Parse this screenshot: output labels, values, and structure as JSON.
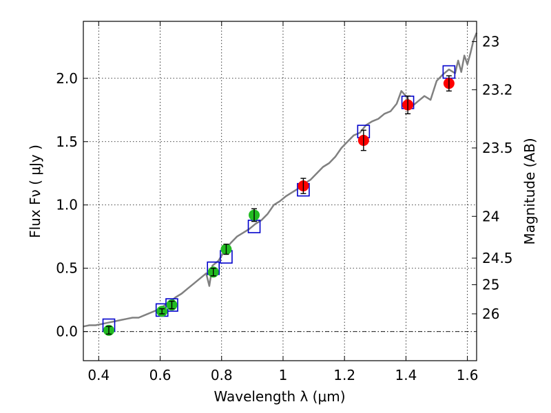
{
  "chart_data": {
    "type": "scatter",
    "xlabel": "Wavelength  λ (μm)",
    "ylabel": "Flux  Fν  ( μJy )",
    "y2label": "Magnitude (AB)",
    "xlim": [
      0.35,
      1.63
    ],
    "ylim": [
      -0.23,
      2.45
    ],
    "grid": true,
    "x_ticks": [
      0.4,
      0.6,
      0.8,
      1.0,
      1.2,
      1.4,
      1.6
    ],
    "x_tick_labels": [
      "0.4",
      "0.6",
      "0.8",
      "1",
      "1.2",
      "1.4",
      "1.6"
    ],
    "y_ticks": [
      0.0,
      0.5,
      1.0,
      1.5,
      2.0
    ],
    "y_tick_labels": [
      "0.0",
      "0.5",
      "1.0",
      "1.5",
      "2.0"
    ],
    "y2_ticks": [
      {
        "flux": 2.29,
        "label": "23"
      },
      {
        "flux": 1.91,
        "label": "23.2"
      },
      {
        "flux": 1.45,
        "label": "23.5"
      },
      {
        "flux": 0.91,
        "label": "24"
      },
      {
        "flux": 0.58,
        "label": "24.5"
      },
      {
        "flux": 0.37,
        "label": "25"
      },
      {
        "flux": 0.14,
        "label": "26"
      }
    ],
    "zero_line": 0.0,
    "colors": {
      "spectrum": "#808080",
      "model_box": "#0000cc",
      "green_point": "#22bb22",
      "red_point": "#ff0000",
      "error_bar": "#000000"
    },
    "spectrum": [
      [
        0.35,
        0.04
      ],
      [
        0.37,
        0.05
      ],
      [
        0.39,
        0.05
      ],
      [
        0.41,
        0.06
      ],
      [
        0.43,
        0.07
      ],
      [
        0.45,
        0.08
      ],
      [
        0.47,
        0.09
      ],
      [
        0.49,
        0.1
      ],
      [
        0.51,
        0.11
      ],
      [
        0.53,
        0.11
      ],
      [
        0.55,
        0.13
      ],
      [
        0.57,
        0.15
      ],
      [
        0.59,
        0.17
      ],
      [
        0.61,
        0.2
      ],
      [
        0.63,
        0.23
      ],
      [
        0.65,
        0.27
      ],
      [
        0.67,
        0.3
      ],
      [
        0.69,
        0.34
      ],
      [
        0.71,
        0.38
      ],
      [
        0.73,
        0.42
      ],
      [
        0.75,
        0.46
      ],
      [
        0.76,
        0.36
      ],
      [
        0.77,
        0.52
      ],
      [
        0.79,
        0.56
      ],
      [
        0.81,
        0.64
      ],
      [
        0.83,
        0.7
      ],
      [
        0.85,
        0.75
      ],
      [
        0.87,
        0.78
      ],
      [
        0.89,
        0.81
      ],
      [
        0.91,
        0.85
      ],
      [
        0.93,
        0.88
      ],
      [
        0.95,
        0.93
      ],
      [
        0.97,
        1.0
      ],
      [
        0.99,
        1.03
      ],
      [
        1.01,
        1.07
      ],
      [
        1.03,
        1.1
      ],
      [
        1.05,
        1.13
      ],
      [
        1.07,
        1.17
      ],
      [
        1.09,
        1.2
      ],
      [
        1.11,
        1.25
      ],
      [
        1.13,
        1.3
      ],
      [
        1.15,
        1.33
      ],
      [
        1.17,
        1.38
      ],
      [
        1.19,
        1.45
      ],
      [
        1.21,
        1.5
      ],
      [
        1.23,
        1.55
      ],
      [
        1.25,
        1.57
      ],
      [
        1.27,
        1.63
      ],
      [
        1.29,
        1.66
      ],
      [
        1.31,
        1.68
      ],
      [
        1.33,
        1.72
      ],
      [
        1.35,
        1.74
      ],
      [
        1.37,
        1.8
      ],
      [
        1.385,
        1.9
      ],
      [
        1.4,
        1.86
      ],
      [
        1.42,
        1.78
      ],
      [
        1.44,
        1.82
      ],
      [
        1.46,
        1.86
      ],
      [
        1.48,
        1.83
      ],
      [
        1.5,
        1.98
      ],
      [
        1.52,
        2.03
      ],
      [
        1.54,
        2.07
      ],
      [
        1.56,
        2.04
      ],
      [
        1.57,
        2.14
      ],
      [
        1.58,
        2.05
      ],
      [
        1.59,
        2.18
      ],
      [
        1.6,
        2.11
      ],
      [
        1.61,
        2.2
      ],
      [
        1.62,
        2.3
      ],
      [
        1.63,
        2.36
      ]
    ],
    "model_boxes": [
      {
        "x": 0.433,
        "y": 0.05
      },
      {
        "x": 0.606,
        "y": 0.17
      },
      {
        "x": 0.638,
        "y": 0.21
      },
      {
        "x": 0.773,
        "y": 0.5
      },
      {
        "x": 0.815,
        "y": 0.59
      },
      {
        "x": 0.906,
        "y": 0.83
      },
      {
        "x": 1.066,
        "y": 1.12
      },
      {
        "x": 1.262,
        "y": 1.58
      },
      {
        "x": 1.406,
        "y": 1.81
      },
      {
        "x": 1.54,
        "y": 2.05
      }
    ],
    "series": [
      {
        "color_key": "green_point",
        "points": [
          {
            "x": 0.433,
            "y": 0.01,
            "err": 0.03
          },
          {
            "x": 0.606,
            "y": 0.16,
            "err": 0.02
          },
          {
            "x": 0.638,
            "y": 0.21,
            "err": 0.03
          },
          {
            "x": 0.773,
            "y": 0.47,
            "err": 0.03
          },
          {
            "x": 0.815,
            "y": 0.65,
            "err": 0.04
          },
          {
            "x": 0.906,
            "y": 0.92,
            "err": 0.05
          }
        ]
      },
      {
        "color_key": "red_point",
        "points": [
          {
            "x": 1.066,
            "y": 1.15,
            "err": 0.06
          },
          {
            "x": 1.262,
            "y": 1.51,
            "err": 0.08
          },
          {
            "x": 1.406,
            "y": 1.79,
            "err": 0.07
          },
          {
            "x": 1.54,
            "y": 1.96,
            "err": 0.06
          }
        ]
      }
    ]
  }
}
